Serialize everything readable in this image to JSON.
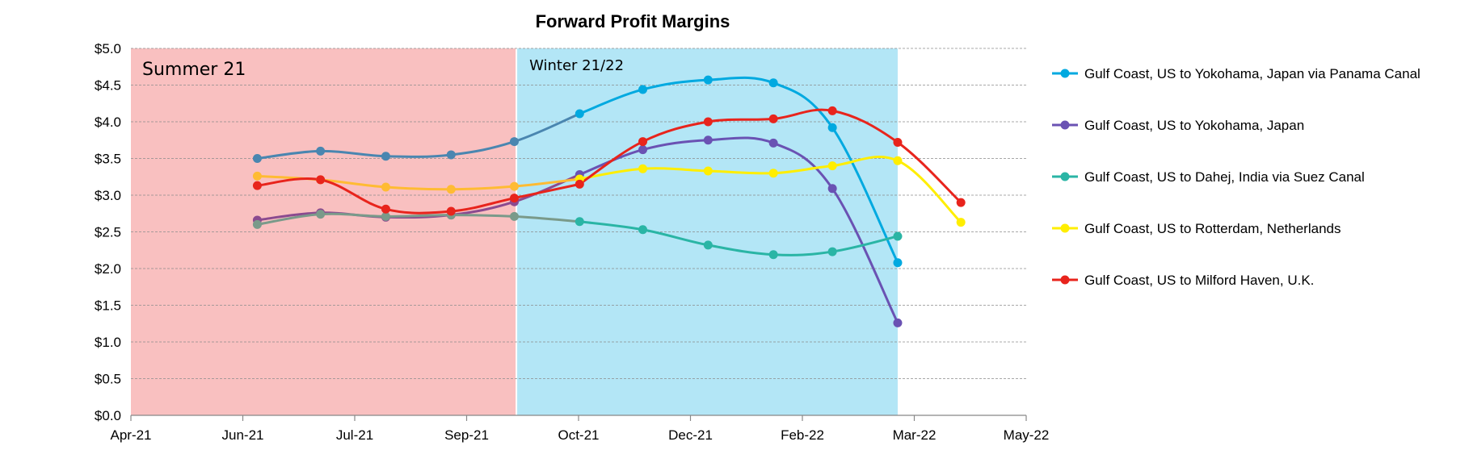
{
  "chart_data": {
    "type": "line",
    "title": "Forward Profit Margins",
    "xlabel": "",
    "ylabel": "",
    "x_ticks": [
      "Apr-21",
      "Jun-21",
      "Jul-21",
      "Sep-21",
      "Oct-21",
      "Dec-21",
      "Feb-22",
      "Mar-22",
      "May-22"
    ],
    "x_range": [
      "2021-04-01",
      "2022-05-31"
    ],
    "y_ticks": [
      "$0.0",
      "$0.5",
      "$1.0",
      "$1.5",
      "$2.0",
      "$2.5",
      "$3.0",
      "$3.5",
      "$4.0",
      "$4.5",
      "$5.0"
    ],
    "ylim": [
      0,
      5
    ],
    "grid": true,
    "legend_position": "right",
    "regions": [
      {
        "label": "Summer 21",
        "start": "2021-04-01",
        "end": "2021-10-01",
        "color": "#f9c0c0"
      },
      {
        "label": "Winter 21/22",
        "start": "2021-10-01",
        "end": "2022-03-31",
        "color": "#b3e6f6"
      }
    ],
    "x": [
      "2021-05-31",
      "2021-06-30",
      "2021-07-31",
      "2021-08-31",
      "2021-09-30",
      "2021-10-31",
      "2021-11-30",
      "2021-12-31",
      "2022-01-31",
      "2022-02-28",
      "2022-03-31",
      "2022-04-30"
    ],
    "series": [
      {
        "name": "Gulf Coast, US to Yokohama, Japan via Panama Canal",
        "color": "#00a9e0",
        "early_color": "#4a86b0",
        "values": [
          3.5,
          3.6,
          3.53,
          3.55,
          3.73,
          4.11,
          4.44,
          4.57,
          4.53,
          3.92,
          2.08,
          null
        ]
      },
      {
        "name": "Gulf Coast, US to Yokohama, Japan",
        "color": "#6a52b3",
        "early_color": "#8b4a8f",
        "values": [
          2.66,
          2.76,
          2.7,
          2.73,
          2.91,
          3.28,
          3.62,
          3.75,
          3.71,
          3.09,
          1.26,
          null
        ]
      },
      {
        "name": "Gulf Coast, US to Dahej, India via Suez Canal",
        "color": "#2ab5a5",
        "early_color": "#7a9a8a",
        "values": [
          2.6,
          2.74,
          2.71,
          2.73,
          2.71,
          2.64,
          2.53,
          2.32,
          2.19,
          2.23,
          2.44,
          null
        ]
      },
      {
        "name": "Gulf Coast, US to Rotterdam, Netherlands",
        "color": "#ffee00",
        "early_color": "#ffbb33",
        "values": [
          3.26,
          3.21,
          3.11,
          3.08,
          3.12,
          3.22,
          3.36,
          3.33,
          3.3,
          3.4,
          3.47,
          2.63
        ]
      },
      {
        "name": "Gulf Coast, US to Milford Haven, U.K.",
        "color": "#e8241c",
        "early_color": "#e8241c",
        "values": [
          3.13,
          3.21,
          2.81,
          2.78,
          2.96,
          3.15,
          3.73,
          4.0,
          4.04,
          4.15,
          3.72,
          2.9
        ]
      }
    ]
  }
}
